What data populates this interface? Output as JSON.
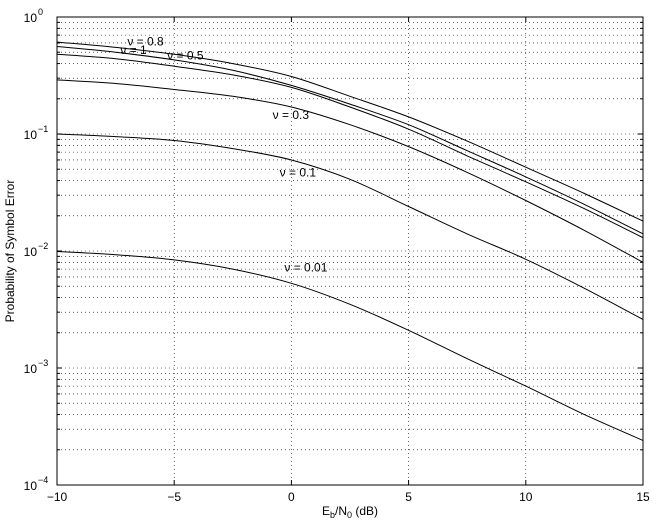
{
  "chart_data": {
    "type": "line",
    "title": "",
    "xlabel": {
      "base": "E",
      "sub1": "b",
      "mid": "/N",
      "sub2": "0",
      "tail": " (dB)"
    },
    "ylabel": "Probability of Symbol Error",
    "xscale": "linear",
    "yscale": "log",
    "xlim": [
      -10,
      15
    ],
    "ylim": [
      0.0001,
      1
    ],
    "grid": true,
    "x_ticks": [
      -10,
      -5,
      0,
      5,
      10,
      15
    ],
    "x_tick_labels": [
      "−10",
      "−5",
      "0",
      "5",
      "10",
      "15"
    ],
    "y_ticks": [
      0.0001,
      0.001,
      0.01,
      0.1,
      1
    ],
    "y_tick_labels": [
      {
        "base": "10",
        "exp": "−4"
      },
      {
        "base": "10",
        "exp": "−3"
      },
      {
        "base": "10",
        "exp": "−2"
      },
      {
        "base": "10",
        "exp": "−1"
      },
      {
        "base": "10",
        "exp": "0"
      }
    ],
    "x": [
      -10,
      -7.5,
      -5,
      -2.5,
      0,
      2.5,
      5,
      7.5,
      10,
      12.5,
      15
    ],
    "series": [
      {
        "name": "ν = 0.8",
        "label_at": [
          -7,
          0.62
        ],
        "values": [
          0.61,
          0.55,
          0.48,
          0.4,
          0.31,
          0.21,
          0.14,
          0.087,
          0.052,
          0.031,
          0.018
        ]
      },
      {
        "name": "ν = 1",
        "label_at": [
          -7.3,
          0.52
        ],
        "values": [
          0.56,
          0.5,
          0.43,
          0.35,
          0.26,
          0.18,
          0.12,
          0.072,
          0.043,
          0.025,
          0.014
        ]
      },
      {
        "name": "ν = 0.5",
        "label_at": [
          -5.3,
          0.47
        ],
        "values": [
          0.48,
          0.44,
          0.38,
          0.32,
          0.25,
          0.17,
          0.11,
          0.065,
          0.039,
          0.023,
          0.013
        ]
      },
      {
        "name": "ν = 0.3",
        "label_at": [
          -0.8,
          0.145
        ],
        "values": [
          0.29,
          0.27,
          0.24,
          0.21,
          0.17,
          0.12,
          0.078,
          0.047,
          0.027,
          0.015,
          0.008
        ]
      },
      {
        "name": "ν = 0.1",
        "label_at": [
          -0.5,
          0.047
        ],
        "values": [
          0.1,
          0.095,
          0.088,
          0.075,
          0.06,
          0.041,
          0.024,
          0.014,
          0.0085,
          0.0048,
          0.0026
        ]
      },
      {
        "name": "ν = 0.01",
        "label_at": [
          -0.3,
          0.0072
        ],
        "values": [
          0.0099,
          0.0093,
          0.0084,
          0.007,
          0.0053,
          0.0035,
          0.0021,
          0.0012,
          0.0007,
          0.0004,
          0.00024
        ]
      }
    ]
  }
}
